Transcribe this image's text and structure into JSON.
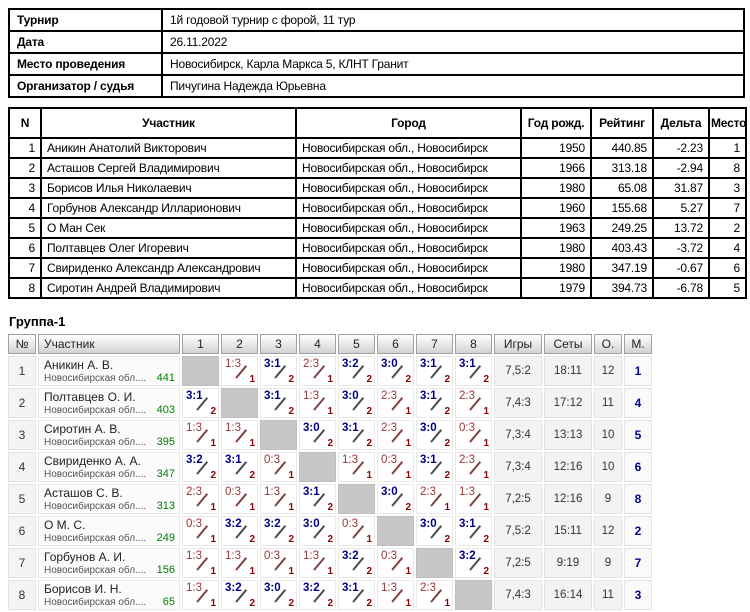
{
  "info_table": {
    "rows": [
      {
        "label": "Турнир",
        "value": "1й годовой турнир с форой, 11 тур"
      },
      {
        "label": "Дата",
        "value": "26.11.2022"
      },
      {
        "label": "Место проведения",
        "value": "Новосибирск, Карла Маркса 5, КЛНТ Гранит"
      },
      {
        "label": "Организатор / судья",
        "value": "Пичугина Надежда Юрьевна"
      }
    ]
  },
  "participants_table": {
    "headers": [
      "N",
      "Участник",
      "Город",
      "Год рожд.",
      "Рейтинг",
      "Дельта",
      "Место"
    ],
    "rows": [
      [
        "1",
        "Аникин Анатолий Викторович",
        "Новосибирская обл., Новосибирск",
        "1950",
        "440.85",
        "-2.23",
        "1"
      ],
      [
        "2",
        "Асташов Сергей Владимирович",
        "Новосибирская обл., Новосибирск",
        "1966",
        "313.18",
        "-2.94",
        "8"
      ],
      [
        "3",
        "Борисов Илья Николаевич",
        "Новосибирская обл., Новосибирск",
        "1980",
        "65.08",
        "31.87",
        "3"
      ],
      [
        "4",
        "Горбунов Александр Илларионович",
        "Новосибирская обл., Новосибирск",
        "1960",
        "155.68",
        "5.27",
        "7"
      ],
      [
        "5",
        "О Ман Сек",
        "Новосибирская обл., Новосибирск",
        "1963",
        "249.25",
        "13.72",
        "2"
      ],
      [
        "6",
        "Полтавцев Олег Игоревич",
        "Новосибирская обл., Новосибирск",
        "1980",
        "403.43",
        "-3.72",
        "4"
      ],
      [
        "7",
        "Свириденко Александр Александрович",
        "Новосибирская обл., Новосибирск",
        "1980",
        "347.19",
        "-0.67",
        "6"
      ],
      [
        "8",
        "Сиротин Андрей Владимирович",
        "Новосибирская обл., Новосибирск",
        "1979",
        "394.73",
        "-6.78",
        "5"
      ]
    ]
  },
  "group_table": {
    "title": "Группа-1",
    "headers": [
      "№",
      "Участник",
      "1",
      "2",
      "3",
      "4",
      "5",
      "6",
      "7",
      "8",
      "Игры",
      "Сеты",
      "О.",
      "М."
    ],
    "rows": [
      {
        "num": "1",
        "name": "Аникин А. В.",
        "region": "Новосибирская обл....",
        "rating": "441",
        "results": [
          null,
          {
            "score": "1:3",
            "win": false,
            "pts": "1"
          },
          {
            "score": "3:1",
            "win": true,
            "pts": "2"
          },
          {
            "score": "2:3",
            "win": false,
            "pts": "1"
          },
          {
            "score": "3:2",
            "win": true,
            "pts": "2"
          },
          {
            "score": "3:0",
            "win": true,
            "pts": "2"
          },
          {
            "score": "3:1",
            "win": true,
            "pts": "2"
          },
          {
            "score": "3:1",
            "win": true,
            "pts": "2"
          }
        ],
        "games": "7,5:2",
        "sets": "18:11",
        "points": "12",
        "place": "1"
      },
      {
        "num": "2",
        "name": "Полтавцев О. И.",
        "region": "Новосибирская обл....",
        "rating": "403",
        "results": [
          {
            "score": "3:1",
            "win": true,
            "pts": "2"
          },
          null,
          {
            "score": "3:1",
            "win": true,
            "pts": "2"
          },
          {
            "score": "1:3",
            "win": false,
            "pts": "1"
          },
          {
            "score": "3:0",
            "win": true,
            "pts": "2"
          },
          {
            "score": "2:3",
            "win": false,
            "pts": "1"
          },
          {
            "score": "3:1",
            "win": true,
            "pts": "2"
          },
          {
            "score": "2:3",
            "win": false,
            "pts": "1"
          }
        ],
        "games": "7,4:3",
        "sets": "17:12",
        "points": "11",
        "place": "4"
      },
      {
        "num": "3",
        "name": "Сиротин А. В.",
        "region": "Новосибирская обл....",
        "rating": "395",
        "results": [
          {
            "score": "1:3",
            "win": false,
            "pts": "1"
          },
          {
            "score": "1:3",
            "win": false,
            "pts": "1"
          },
          null,
          {
            "score": "3:0",
            "win": true,
            "pts": "2"
          },
          {
            "score": "3:1",
            "win": true,
            "pts": "2"
          },
          {
            "score": "2:3",
            "win": false,
            "pts": "1"
          },
          {
            "score": "3:0",
            "win": true,
            "pts": "2"
          },
          {
            "score": "0:3",
            "win": false,
            "pts": "1"
          }
        ],
        "games": "7,3:4",
        "sets": "13:13",
        "points": "10",
        "place": "5"
      },
      {
        "num": "4",
        "name": "Свириденко А. А.",
        "region": "Новосибирская обл....",
        "rating": "347",
        "results": [
          {
            "score": "3:2",
            "win": true,
            "pts": "2"
          },
          {
            "score": "3:1",
            "win": true,
            "pts": "2"
          },
          {
            "score": "0:3",
            "win": false,
            "pts": "1"
          },
          null,
          {
            "score": "1:3",
            "win": false,
            "pts": "1"
          },
          {
            "score": "0:3",
            "win": false,
            "pts": "1"
          },
          {
            "score": "3:1",
            "win": true,
            "pts": "2"
          },
          {
            "score": "2:3",
            "win": false,
            "pts": "1"
          }
        ],
        "games": "7,3:4",
        "sets": "12:16",
        "points": "10",
        "place": "6"
      },
      {
        "num": "5",
        "name": "Асташов С. В.",
        "region": "Новосибирская обл....",
        "rating": "313",
        "results": [
          {
            "score": "2:3",
            "win": false,
            "pts": "1"
          },
          {
            "score": "0:3",
            "win": false,
            "pts": "1"
          },
          {
            "score": "1:3",
            "win": false,
            "pts": "1"
          },
          {
            "score": "3:1",
            "win": true,
            "pts": "2"
          },
          null,
          {
            "score": "3:0",
            "win": true,
            "pts": "2"
          },
          {
            "score": "2:3",
            "win": false,
            "pts": "1"
          },
          {
            "score": "1:3",
            "win": false,
            "pts": "1"
          }
        ],
        "games": "7,2:5",
        "sets": "12:16",
        "points": "9",
        "place": "8"
      },
      {
        "num": "6",
        "name": "О М. С.",
        "region": "Новосибирская обл....",
        "rating": "249",
        "results": [
          {
            "score": "0:3",
            "win": false,
            "pts": "1"
          },
          {
            "score": "3:2",
            "win": true,
            "pts": "2"
          },
          {
            "score": "3:2",
            "win": true,
            "pts": "2"
          },
          {
            "score": "3:0",
            "win": true,
            "pts": "2"
          },
          {
            "score": "0:3",
            "win": false,
            "pts": "1"
          },
          null,
          {
            "score": "3:0",
            "win": true,
            "pts": "2"
          },
          {
            "score": "3:1",
            "win": true,
            "pts": "2"
          }
        ],
        "games": "7,5:2",
        "sets": "15:11",
        "points": "12",
        "place": "2"
      },
      {
        "num": "7",
        "name": "Горбунов А. И.",
        "region": "Новосибирская обл....",
        "rating": "156",
        "results": [
          {
            "score": "1:3",
            "win": false,
            "pts": "1"
          },
          {
            "score": "1:3",
            "win": false,
            "pts": "1"
          },
          {
            "score": "0:3",
            "win": false,
            "pts": "1"
          },
          {
            "score": "1:3",
            "win": false,
            "pts": "1"
          },
          {
            "score": "3:2",
            "win": true,
            "pts": "2"
          },
          {
            "score": "0:3",
            "win": false,
            "pts": "1"
          },
          null,
          {
            "score": "3:2",
            "win": true,
            "pts": "2"
          }
        ],
        "games": "7,2:5",
        "sets": "9:19",
        "points": "9",
        "place": "7"
      },
      {
        "num": "8",
        "name": "Борисов И. Н.",
        "region": "Новосибирская обл....",
        "rating": "65",
        "results": [
          {
            "score": "1:3",
            "win": false,
            "pts": "1"
          },
          {
            "score": "3:2",
            "win": true,
            "pts": "2"
          },
          {
            "score": "3:0",
            "win": true,
            "pts": "2"
          },
          {
            "score": "3:2",
            "win": true,
            "pts": "2"
          },
          {
            "score": "3:1",
            "win": true,
            "pts": "2"
          },
          {
            "score": "1:3",
            "win": false,
            "pts": "1"
          },
          {
            "score": "2:3",
            "win": false,
            "pts": "1"
          },
          null
        ],
        "games": "7,4:3",
        "sets": "16:14",
        "points": "11",
        "place": "3"
      }
    ]
  },
  "colors": {
    "win_score": "#00008b",
    "loss_score": "#993333",
    "handicap_points": "#8b0000",
    "rating_green": "#008000",
    "place_navy": "#00008b",
    "self_cell_gray": "#c7c7c7"
  }
}
